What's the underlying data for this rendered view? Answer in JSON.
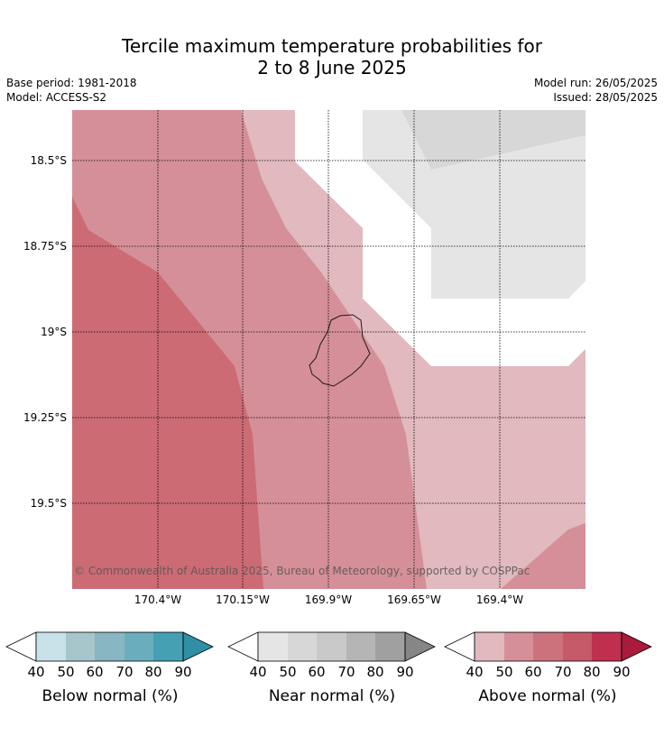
{
  "title_line1": "Tercile maximum temperature probabilities for",
  "title_line2": "2 to 8 June 2025",
  "base_period": "Base period: 1981-2018",
  "model": "Model: ACCESS-S2",
  "model_run": "Model run: 26/05/2025",
  "issued": "Issued: 28/05/2025",
  "copyright": "© Commonwealth of Australia 2025, Bureau of Meteorology, supported by COSPPac",
  "lat_labels": [
    "18.5°S",
    "18.75°S",
    "19°S",
    "19.25°S",
    "19.5°S"
  ],
  "lon_labels": [
    "170.4°W",
    "170.15°W",
    "169.9°W",
    "169.65°W",
    "169.4°W"
  ],
  "colorbars": [
    {
      "label": "Below normal (%)",
      "ticks": [
        "40",
        "50",
        "60",
        "70",
        "80",
        "90"
      ],
      "colors": [
        "#c9e1e8",
        "#a6c6cc",
        "#88b6c2",
        "#6aaebd",
        "#45a0b4",
        "#2e8fa6"
      ]
    },
    {
      "label": "Near normal (%)",
      "ticks": [
        "40",
        "50",
        "60",
        "70",
        "80",
        "90"
      ],
      "colors": [
        "#e5e5e5",
        "#d7d7d7",
        "#c9c9c9",
        "#b5b5b5",
        "#a0a0a0",
        "#868686"
      ]
    },
    {
      "label": "Above normal (%)",
      "ticks": [
        "40",
        "50",
        "60",
        "70",
        "80",
        "90"
      ],
      "colors": [
        "#e1b9be",
        "#d58f98",
        "#cc727c",
        "#c55967",
        "#be304d",
        "#aa1a3c"
      ]
    }
  ],
  "map_colors": {
    "above_40": "#e1b9be",
    "above_50": "#d58f98",
    "above_60": "#cc6b74",
    "near_40": "#e5e5e5",
    "near_50": "#d7d7d7"
  }
}
